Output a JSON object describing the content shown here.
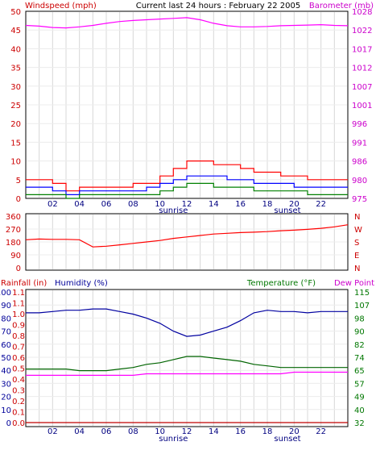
{
  "chart_data": [
    {
      "type": "line",
      "title": "Current last 24 hours : February 22 2005",
      "left_axis_label": "Windspeed (mph)",
      "right_axis_label": "Barometer (mb)",
      "left_ylim": [
        0,
        50
      ],
      "right_ylim": [
        975,
        1028
      ],
      "left_ticks": [
        "50",
        "45",
        "40",
        "35",
        "30",
        "25",
        "20",
        "15",
        "10",
        "5",
        "0"
      ],
      "right_ticks": [
        "1028",
        "1022",
        "1017",
        "1012",
        "1007",
        "1001",
        "996",
        "991",
        "986",
        "980",
        "975"
      ],
      "x_ticks": [
        "02",
        "04",
        "06",
        "08",
        "10",
        "12",
        "14",
        "16",
        "18",
        "20",
        "22"
      ],
      "x_markers": [
        {
          "label": "sunrise",
          "x": 11
        },
        {
          "label": "sunset",
          "x": 19.5
        }
      ],
      "series": [
        {
          "color": "#ff0000",
          "axis": "left",
          "x": [
            0,
            1,
            2,
            3,
            4,
            5,
            6,
            7,
            8,
            9,
            10,
            11,
            12,
            13,
            14,
            15,
            16,
            17,
            18,
            19,
            20,
            21,
            22,
            23,
            24
          ],
          "values": [
            5,
            5,
            4,
            2,
            3,
            3,
            3,
            3,
            4,
            4,
            6,
            8,
            10,
            10,
            9,
            9,
            8,
            7,
            7,
            6,
            6,
            5,
            5,
            5,
            5
          ]
        },
        {
          "color": "#0000ff",
          "axis": "left",
          "x": [
            0,
            1,
            2,
            3,
            4,
            5,
            6,
            7,
            8,
            9,
            10,
            11,
            12,
            13,
            14,
            15,
            16,
            17,
            18,
            19,
            20,
            21,
            22,
            23,
            24
          ],
          "values": [
            3,
            3,
            2,
            1,
            2,
            2,
            2,
            2,
            2,
            3,
            4,
            5,
            6,
            6,
            6,
            5,
            5,
            4,
            4,
            4,
            3,
            3,
            3,
            3,
            3
          ]
        },
        {
          "color": "#008000",
          "axis": "left",
          "x": [
            0,
            1,
            2,
            3,
            4,
            5,
            6,
            7,
            8,
            9,
            10,
            11,
            12,
            13,
            14,
            15,
            16,
            17,
            18,
            19,
            20,
            21,
            22,
            23,
            24
          ],
          "values": [
            1,
            1,
            1,
            0,
            1,
            1,
            1,
            1,
            1,
            1,
            2,
            3,
            4,
            4,
            3,
            3,
            3,
            2,
            2,
            2,
            2,
            1,
            1,
            1,
            1
          ]
        },
        {
          "color": "#ff00ff",
          "axis": "right",
          "x": [
            0,
            1,
            2,
            3,
            4,
            5,
            6,
            7,
            8,
            9,
            10,
            11,
            12,
            13,
            14,
            15,
            16,
            17,
            18,
            19,
            20,
            21,
            22,
            23,
            24
          ],
          "values": [
            1024,
            1023.8,
            1023.4,
            1023.3,
            1023.6,
            1024.0,
            1024.6,
            1025.1,
            1025.4,
            1025.6,
            1025.8,
            1026.0,
            1026.2,
            1025.6,
            1024.6,
            1023.9,
            1023.6,
            1023.6,
            1023.7,
            1023.9,
            1024.0,
            1024.1,
            1024.2,
            1024.0,
            1023.9
          ]
        }
      ]
    },
    {
      "type": "line",
      "left_ylim": [
        0,
        360
      ],
      "left_ticks": [
        "360",
        "270",
        "180",
        "90",
        "0"
      ],
      "right_ticks": [
        "N",
        "W",
        "S",
        "E",
        "N"
      ],
      "series": [
        {
          "color": "#ff0000",
          "x": [
            0,
            1,
            2,
            3,
            4,
            5,
            6,
            7,
            8,
            9,
            10,
            11,
            12,
            13,
            14,
            15,
            16,
            17,
            18,
            19,
            20,
            21,
            22,
            23,
            24
          ],
          "values": [
            195,
            200,
            198,
            198,
            195,
            145,
            150,
            160,
            170,
            180,
            190,
            205,
            215,
            225,
            235,
            240,
            245,
            248,
            252,
            258,
            262,
            268,
            275,
            285,
            300
          ]
        }
      ]
    },
    {
      "type": "line",
      "left_axis_label": "Rainfall (in)",
      "left_axis_label_2": "Humidity (%)",
      "right_axis_label": "Temperature (°F)",
      "right_axis_label_2": "Dew Point",
      "rain_ticks": [
        "1.1",
        "1.1",
        "1.0",
        "0.9",
        "0.8",
        "0.7",
        "0.6",
        "0.5",
        "0.4",
        "0.3",
        "0.2",
        "0.1",
        "0.0"
      ],
      "humidity_ticks": [
        "100",
        "90",
        "80",
        "70",
        "60",
        "50",
        "40",
        "30",
        "20",
        "10",
        "0"
      ],
      "right_ticks": [
        "115",
        "107",
        "98",
        "90",
        "82",
        "74",
        "65",
        "57",
        "49",
        "40",
        "32"
      ],
      "humidity_ylim": [
        0,
        100
      ],
      "temp_ylim": [
        32,
        115
      ],
      "x_ticks": [
        "02",
        "04",
        "06",
        "08",
        "10",
        "12",
        "14",
        "16",
        "18",
        "20",
        "22"
      ],
      "x_markers": [
        {
          "label": "sunrise",
          "x": 11
        },
        {
          "label": "sunset",
          "x": 19.5
        }
      ],
      "series": [
        {
          "color": "#0000a0",
          "axis": "humidity",
          "x": [
            0,
            1,
            2,
            3,
            4,
            5,
            6,
            7,
            8,
            9,
            10,
            11,
            12,
            13,
            14,
            15,
            16,
            17,
            18,
            19,
            20,
            21,
            22,
            23,
            24
          ],
          "values": [
            84,
            84,
            85,
            86,
            86,
            87,
            87,
            85,
            83,
            80,
            76,
            70,
            66,
            67,
            70,
            73,
            78,
            84,
            86,
            85,
            85,
            84,
            85,
            85,
            85
          ]
        },
        {
          "color": "#006400",
          "axis": "temp",
          "x": [
            0,
            1,
            2,
            3,
            4,
            5,
            6,
            7,
            8,
            9,
            10,
            11,
            12,
            13,
            14,
            15,
            16,
            17,
            18,
            19,
            20,
            21,
            22,
            23,
            24
          ],
          "values": [
            66,
            66,
            66,
            66,
            65,
            65,
            65,
            66,
            67,
            69,
            70,
            72,
            74,
            74,
            73,
            72,
            71,
            69,
            68,
            67,
            67,
            67,
            67,
            67,
            67
          ]
        },
        {
          "color": "#ff00ff",
          "axis": "temp",
          "x": [
            0,
            1,
            2,
            3,
            4,
            5,
            6,
            7,
            8,
            9,
            10,
            11,
            12,
            13,
            14,
            15,
            16,
            17,
            18,
            19,
            20,
            21,
            22,
            23,
            24
          ],
          "values": [
            62,
            62,
            62,
            62,
            62,
            62,
            62,
            62,
            62,
            63,
            63,
            63,
            63,
            63,
            63,
            63,
            63,
            63,
            63,
            63,
            64,
            64,
            64,
            64,
            64
          ]
        },
        {
          "color": "#c00000",
          "axis": "rain",
          "x": [
            0,
            24
          ],
          "values": [
            0.0,
            0.0
          ]
        }
      ]
    }
  ]
}
